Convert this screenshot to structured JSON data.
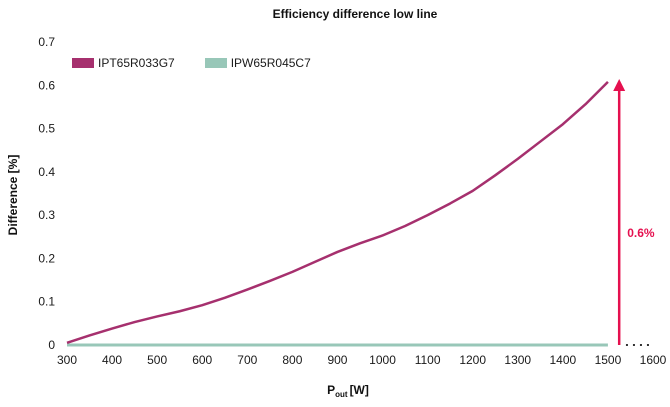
{
  "chart_data": {
    "type": "line",
    "title": "Efficiency difference  low line",
    "xlabel_main": "P",
    "xlabel_sub": "out",
    "xlabel_unit": "[W]",
    "ylabel": "Difference [%]",
    "xlim": [
      300,
      1600
    ],
    "ylim": [
      0,
      0.7
    ],
    "x_ticks": [
      300,
      400,
      500,
      600,
      700,
      800,
      900,
      1000,
      1100,
      1200,
      1300,
      1400,
      1500,
      1600
    ],
    "y_ticks": [
      0,
      0.1,
      0.2,
      0.3,
      0.4,
      0.5,
      0.6,
      0.7
    ],
    "grid": false,
    "legend_position": "top-left",
    "series": [
      {
        "name": "IPT65R033G7",
        "color": "#a6306e",
        "x": [
          300,
          350,
          400,
          450,
          500,
          550,
          600,
          650,
          700,
          750,
          800,
          850,
          900,
          950,
          1000,
          1050,
          1100,
          1150,
          1200,
          1250,
          1300,
          1350,
          1400,
          1450,
          1500
        ],
        "y": [
          0.005,
          0.022,
          0.038,
          0.053,
          0.066,
          0.078,
          0.092,
          0.109,
          0.128,
          0.148,
          0.169,
          0.192,
          0.215,
          0.235,
          0.253,
          0.275,
          0.3,
          0.327,
          0.356,
          0.392,
          0.43,
          0.47,
          0.51,
          0.556,
          0.608
        ]
      },
      {
        "name": "IPW65R045C7",
        "color": "#98c7b8",
        "x": [
          300,
          1500
        ],
        "y": [
          0,
          0
        ]
      }
    ],
    "annotation": {
      "label": "0.6%",
      "color": "#e5104f",
      "x": 1525,
      "y_from": 0,
      "y_to": 0.61
    }
  }
}
